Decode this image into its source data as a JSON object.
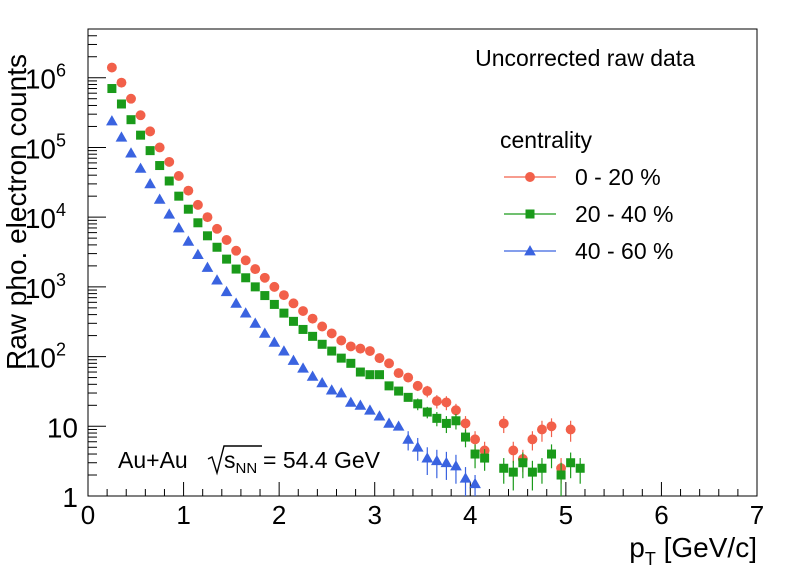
{
  "chart_data": {
    "type": "scatter",
    "title": "",
    "annotations": {
      "top_right": "Uncorrected raw data",
      "system_prefix": "Au+Au ",
      "sqrt_s": "s",
      "sqrt_sub": "NN",
      "energy": " = 54.4 GeV"
    },
    "xlabel": {
      "main": "p",
      "sub": "T",
      "unit": " [GeV/c]"
    },
    "ylabel": "Raw pho. electron counts",
    "xlim": [
      0,
      7
    ],
    "ylim": [
      1,
      5000000
    ],
    "y_scale": "log",
    "x_ticks": [
      "0",
      "1",
      "2",
      "3",
      "4",
      "5",
      "6",
      "7"
    ],
    "y_ticks": [
      {
        "value": 1,
        "base": "1",
        "exp": ""
      },
      {
        "value": 10,
        "base": "10",
        "exp": ""
      },
      {
        "value": 100,
        "base": "10",
        "exp": "2"
      },
      {
        "value": 1000,
        "base": "10",
        "exp": "3"
      },
      {
        "value": 10000,
        "base": "10",
        "exp": "4"
      },
      {
        "value": 100000,
        "base": "10",
        "exp": "5"
      },
      {
        "value": 1000000,
        "base": "10",
        "exp": "6"
      }
    ],
    "grid": false,
    "legend": {
      "title": "centrality",
      "position": "top-right"
    },
    "series": [
      {
        "name": "0 - 20 %",
        "color": "#f2604a",
        "marker": "circle",
        "x": [
          0.25,
          0.35,
          0.45,
          0.55,
          0.65,
          0.75,
          0.85,
          0.95,
          1.05,
          1.15,
          1.25,
          1.35,
          1.45,
          1.55,
          1.65,
          1.75,
          1.85,
          1.95,
          2.05,
          2.15,
          2.25,
          2.35,
          2.45,
          2.55,
          2.65,
          2.75,
          2.85,
          2.95,
          3.05,
          3.15,
          3.25,
          3.35,
          3.45,
          3.55,
          3.65,
          3.75,
          3.85,
          3.95,
          4.05,
          4.15,
          4.35,
          4.45,
          4.55,
          4.65,
          4.75,
          4.85,
          4.95,
          5.05
        ],
        "y": [
          1400000,
          850000,
          500000,
          290000,
          170000,
          100000,
          62000,
          39000,
          24000,
          15000,
          10000,
          6800,
          4700,
          3300,
          2400,
          1800,
          1350,
          1000,
          760,
          580,
          450,
          350,
          270,
          215,
          170,
          140,
          130,
          120,
          95,
          80,
          58,
          50,
          38,
          32,
          23,
          22,
          17,
          11,
          6.5,
          4.5,
          11,
          4.5,
          3.4,
          6.5,
          9.0,
          10,
          2.5,
          9.0
        ],
        "yerr_lo": [
          0,
          0,
          0,
          0,
          0,
          0,
          0,
          0,
          0,
          0,
          0,
          0,
          0,
          0,
          0,
          0,
          0,
          0,
          0,
          0,
          0,
          0,
          0,
          0,
          0,
          0,
          0,
          0,
          0,
          0,
          0,
          0,
          6,
          6,
          5,
          5,
          4,
          3,
          2,
          1.5,
          3,
          1.5,
          1.2,
          2,
          3,
          3,
          1,
          3
        ],
        "yerr_hi": [
          0,
          0,
          0,
          0,
          0,
          0,
          0,
          0,
          0,
          0,
          0,
          0,
          0,
          0,
          0,
          0,
          0,
          0,
          0,
          0,
          0,
          0,
          0,
          0,
          0,
          0,
          0,
          0,
          0,
          0,
          0,
          0,
          6,
          6,
          5,
          5,
          4,
          3,
          2,
          1.5,
          3,
          1.5,
          1.2,
          2,
          3,
          3,
          1,
          3
        ]
      },
      {
        "name": "20 - 40 %",
        "color": "#1a9a1a",
        "marker": "square",
        "x": [
          0.25,
          0.35,
          0.45,
          0.55,
          0.65,
          0.75,
          0.85,
          0.95,
          1.05,
          1.15,
          1.25,
          1.35,
          1.45,
          1.55,
          1.65,
          1.75,
          1.85,
          1.95,
          2.05,
          2.15,
          2.25,
          2.35,
          2.45,
          2.55,
          2.65,
          2.75,
          2.85,
          2.95,
          3.05,
          3.15,
          3.25,
          3.35,
          3.45,
          3.55,
          3.65,
          3.75,
          3.85,
          3.95,
          4.05,
          4.15,
          4.35,
          4.45,
          4.55,
          4.65,
          4.75,
          4.85,
          4.95,
          5.05,
          5.15
        ],
        "y": [
          700000,
          420000,
          250000,
          150000,
          90000,
          55000,
          33000,
          20000,
          13000,
          8300,
          5400,
          3700,
          2500,
          1800,
          1350,
          1000,
          750,
          560,
          420,
          320,
          245,
          195,
          150,
          120,
          95,
          80,
          60,
          55,
          55,
          38,
          32,
          26,
          21,
          16,
          13,
          11,
          12,
          7,
          4,
          3.5,
          2.5,
          2.2,
          3.0,
          2.2,
          2.5,
          4.0,
          2.0,
          3.0,
          2.5
        ],
        "yerr_lo": [
          0,
          0,
          0,
          0,
          0,
          0,
          0,
          0,
          0,
          0,
          0,
          0,
          0,
          0,
          0,
          0,
          0,
          0,
          0,
          0,
          0,
          0,
          0,
          0,
          0,
          0,
          0,
          0,
          0,
          0,
          0,
          0,
          4,
          3,
          3,
          3,
          3,
          2,
          1.5,
          1.2,
          1,
          1,
          1.2,
          1,
          1,
          1.5,
          1,
          1.2,
          1
        ],
        "yerr_hi": [
          0,
          0,
          0,
          0,
          0,
          0,
          0,
          0,
          0,
          0,
          0,
          0,
          0,
          0,
          0,
          0,
          0,
          0,
          0,
          0,
          0,
          0,
          0,
          0,
          0,
          0,
          0,
          0,
          0,
          0,
          0,
          0,
          4,
          3,
          3,
          3,
          3,
          2,
          1.5,
          1.2,
          1,
          1,
          1.2,
          1,
          1,
          1.5,
          1,
          1.2,
          1
        ]
      },
      {
        "name": "40 - 60 %",
        "color": "#3a63e0",
        "marker": "triangle",
        "x": [
          0.25,
          0.35,
          0.45,
          0.55,
          0.65,
          0.75,
          0.85,
          0.95,
          1.05,
          1.15,
          1.25,
          1.35,
          1.45,
          1.55,
          1.65,
          1.75,
          1.85,
          1.95,
          2.05,
          2.15,
          2.25,
          2.35,
          2.45,
          2.55,
          2.65,
          2.75,
          2.85,
          2.95,
          3.05,
          3.15,
          3.25,
          3.35,
          3.45,
          3.55,
          3.65,
          3.75,
          3.85,
          3.95,
          4.05
        ],
        "y": [
          240000,
          140000,
          83000,
          50000,
          30000,
          18000,
          11000,
          7000,
          4500,
          2900,
          1900,
          1250,
          850,
          580,
          420,
          300,
          215,
          160,
          120,
          88,
          68,
          52,
          42,
          33,
          30,
          22,
          20,
          17,
          14,
          11,
          10,
          6.5,
          5.0,
          3.5,
          3.2,
          3.0,
          2.7,
          1.8,
          1.5
        ],
        "yerr_lo": [
          0,
          0,
          0,
          0,
          0,
          0,
          0,
          0,
          0,
          0,
          0,
          0,
          0,
          0,
          0,
          0,
          0,
          0,
          0,
          0,
          0,
          0,
          0,
          0,
          0,
          0,
          0,
          0,
          0,
          0,
          0,
          2,
          1.8,
          1.5,
          1.4,
          1.3,
          1.2,
          0.8,
          0.5
        ],
        "yerr_hi": [
          0,
          0,
          0,
          0,
          0,
          0,
          0,
          0,
          0,
          0,
          0,
          0,
          0,
          0,
          0,
          0,
          0,
          0,
          0,
          0,
          0,
          0,
          0,
          0,
          0,
          0,
          0,
          0,
          0,
          0,
          0,
          2,
          1.8,
          1.5,
          1.4,
          1.3,
          1.2,
          0.8,
          0.5
        ]
      }
    ]
  }
}
